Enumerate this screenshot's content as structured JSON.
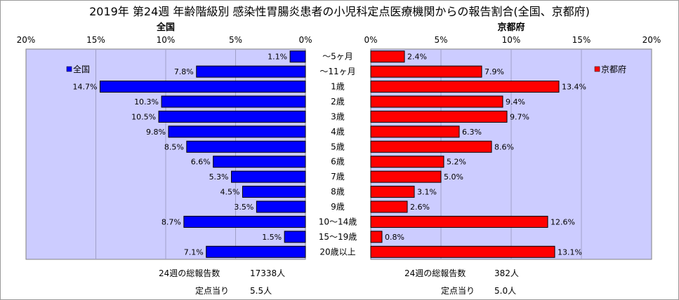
{
  "title": "2019年 第24週 年齢階級別 感染性胃腸炎患者の小児科定点医療機関からの報告割合(全国、京都府)",
  "chart_data": [
    {
      "type": "bar",
      "orientation": "horizontal",
      "direction": "reversed",
      "title": "全国",
      "legend": "全国",
      "legend_position": "top-left",
      "color": "#0000ff",
      "xlim": [
        0,
        20
      ],
      "ticks": [
        "0%",
        "5%",
        "10%",
        "15%",
        "20%"
      ],
      "tick_values": [
        0,
        5,
        10,
        15,
        20
      ],
      "categories": [
        "～5ヶ月",
        "～11ヶ月",
        "1歳",
        "2歳",
        "3歳",
        "4歳",
        "5歳",
        "6歳",
        "7歳",
        "8歳",
        "9歳",
        "10～14歳",
        "15～19歳",
        "20歳以上"
      ],
      "values": [
        1.1,
        7.8,
        14.7,
        10.3,
        10.5,
        9.8,
        8.5,
        6.6,
        5.3,
        4.5,
        3.5,
        8.7,
        1.5,
        7.1
      ],
      "labels": [
        "1.1%",
        "7.8%",
        "14.7%",
        "10.3%",
        "10.5%",
        "9.8%",
        "8.5%",
        "6.6%",
        "5.3%",
        "4.5%",
        "3.5%",
        "8.7%",
        "1.5%",
        "7.1%"
      ]
    },
    {
      "type": "bar",
      "orientation": "horizontal",
      "title": "京都府",
      "legend": "京都府",
      "legend_position": "top-right",
      "color": "#ff0000",
      "xlim": [
        0,
        20
      ],
      "ticks": [
        "0%",
        "5%",
        "10%",
        "15%",
        "20%"
      ],
      "tick_values": [
        0,
        5,
        10,
        15,
        20
      ],
      "categories": [
        "～5ヶ月",
        "～11ヶ月",
        "1歳",
        "2歳",
        "3歳",
        "4歳",
        "5歳",
        "6歳",
        "7歳",
        "8歳",
        "9歳",
        "10～14歳",
        "15～19歳",
        "20歳以上"
      ],
      "values": [
        2.4,
        7.9,
        13.4,
        9.4,
        9.7,
        6.3,
        8.6,
        5.2,
        5.0,
        3.1,
        2.6,
        12.6,
        0.8,
        13.1
      ],
      "labels": [
        "2.4%",
        "7.9%",
        "13.4%",
        "9.4%",
        "9.7%",
        "6.3%",
        "8.6%",
        "5.2%",
        "5.0%",
        "3.1%",
        "2.6%",
        "12.6%",
        "0.8%",
        "13.1%"
      ]
    }
  ],
  "footer": {
    "national": {
      "reports_label": "24週の総報告数",
      "reports_value": "17338人",
      "per_site_label": "定点当り",
      "per_site_value": "5.5人"
    },
    "kyoto": {
      "reports_label": "24週の総報告数",
      "reports_value": "382人",
      "per_site_label": "定点当り",
      "per_site_value": "5.0人"
    }
  }
}
